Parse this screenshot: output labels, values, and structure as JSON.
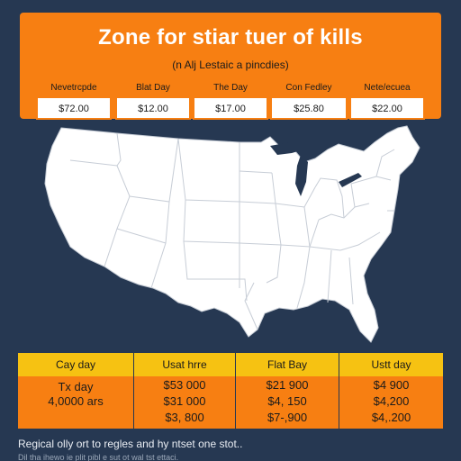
{
  "header": {
    "title": "Zone for stiar tuer of kills",
    "subtitle": "(n Alj Lestaic a pincdies)"
  },
  "tabs": [
    {
      "label": "Nevetrcpde",
      "price": "$72.00"
    },
    {
      "label": "Blat Day",
      "price": "$12.00"
    },
    {
      "label": "The Day",
      "price": "$17.00"
    },
    {
      "label": "Con Fedley",
      "price": "$25.80"
    },
    {
      "label": "Nete/ecuea",
      "price": "$22.00"
    }
  ],
  "map": {
    "region": "United States",
    "land_color": "#ffffff",
    "border_color": "#c7cdd6"
  },
  "table": {
    "columns": [
      {
        "header": "Cay day",
        "cells": [
          "Tx day",
          "4,0000 ars"
        ]
      },
      {
        "header": "Usat hrre",
        "cells": [
          "$53 000",
          "$31 000",
          "$3, 800"
        ]
      },
      {
        "header": "Flat Bay",
        "cells": [
          "$21 900",
          "$4, 150",
          "$7-,900"
        ]
      },
      {
        "header": "Ustt day",
        "cells": [
          "$4 900",
          "$4,200",
          "$4,.200"
        ]
      }
    ]
  },
  "footer": {
    "text": "Regical olly ort to regles and hy ntset one stot..",
    "subtext": "Dil tha ihewo ie plit pibl e sut ot wal tst ettaci."
  },
  "colors": {
    "background": "#263852",
    "accent": "#f77f12",
    "table_header": "#f6c212"
  }
}
